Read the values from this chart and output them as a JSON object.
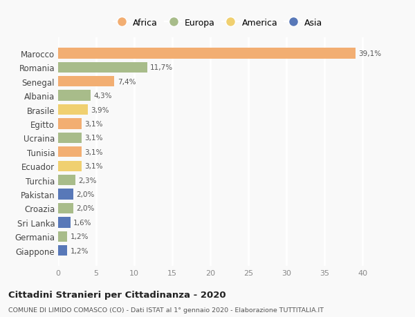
{
  "countries": [
    "Marocco",
    "Romania",
    "Senegal",
    "Albania",
    "Brasile",
    "Egitto",
    "Ucraina",
    "Tunisia",
    "Ecuador",
    "Turchia",
    "Pakistan",
    "Croazia",
    "Sri Lanka",
    "Germania",
    "Giappone"
  ],
  "values": [
    39.1,
    11.7,
    7.4,
    4.3,
    3.9,
    3.1,
    3.1,
    3.1,
    3.1,
    2.3,
    2.0,
    2.0,
    1.6,
    1.2,
    1.2
  ],
  "labels": [
    "39,1%",
    "11,7%",
    "7,4%",
    "4,3%",
    "3,9%",
    "3,1%",
    "3,1%",
    "3,1%",
    "3,1%",
    "2,3%",
    "2,0%",
    "2,0%",
    "1,6%",
    "1,2%",
    "1,2%"
  ],
  "continents": [
    "Africa",
    "Europa",
    "Africa",
    "Europa",
    "America",
    "Africa",
    "Europa",
    "Africa",
    "America",
    "Europa",
    "Asia",
    "Europa",
    "Asia",
    "Europa",
    "Asia"
  ],
  "colors": {
    "Africa": "#F2AE72",
    "Europa": "#A8BC8A",
    "America": "#F0D070",
    "Asia": "#5878B8"
  },
  "legend_order": [
    "Africa",
    "Europa",
    "America",
    "Asia"
  ],
  "xlim": [
    0,
    42
  ],
  "xticks": [
    0,
    5,
    10,
    15,
    20,
    25,
    30,
    35,
    40
  ],
  "title": "Cittadini Stranieri per Cittadinanza - 2020",
  "subtitle": "COMUNE DI LIMIDO COMASCO (CO) - Dati ISTAT al 1° gennaio 2020 - Elaborazione TUTTITALIA.IT",
  "bg_color": "#f9f9f9",
  "grid_color": "#ffffff",
  "bar_height": 0.75
}
